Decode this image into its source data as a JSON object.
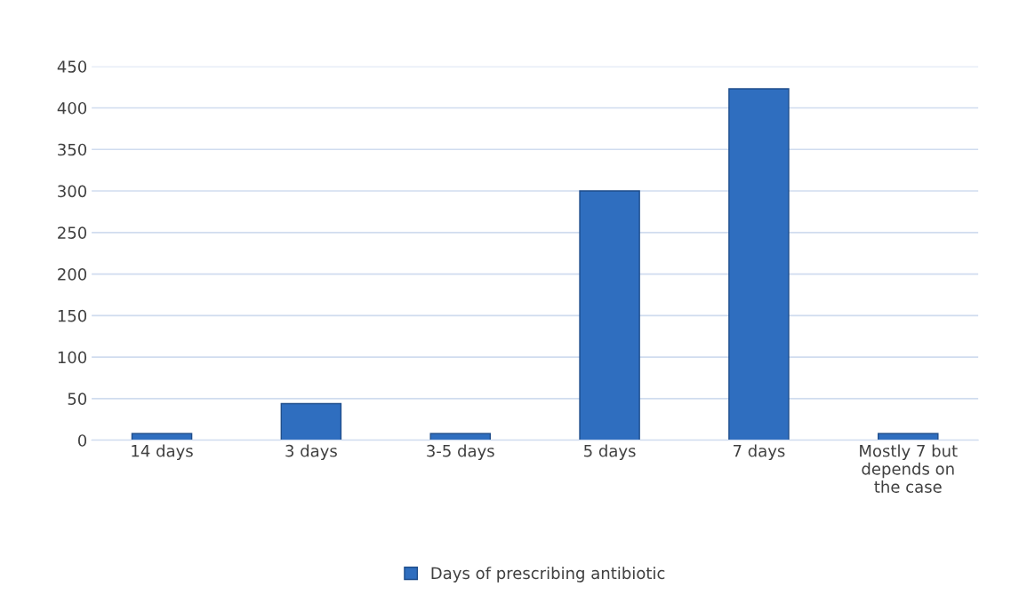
{
  "chart_data": {
    "type": "bar",
    "categories": [
      "14 days",
      "3 days",
      "3-5 days",
      "5 days",
      "7 days",
      "Mostly 7 but\ndepends on\nthe case"
    ],
    "series": [
      {
        "name": "Days of prescribing antibiotic",
        "color": "#2f6ebf",
        "values": [
          8,
          44,
          8,
          300,
          423,
          8
        ]
      }
    ],
    "ylim": [
      0,
      450
    ],
    "yticks": [
      0,
      50,
      100,
      150,
      200,
      250,
      300,
      350,
      400,
      450
    ],
    "grid": "y",
    "legend": "bottom"
  }
}
